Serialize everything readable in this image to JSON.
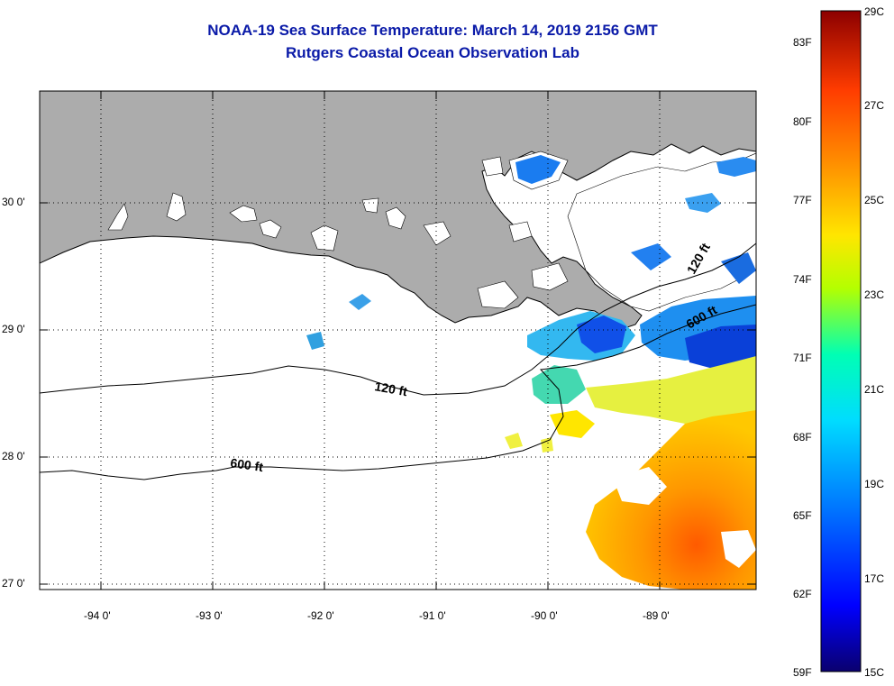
{
  "title": "NOAA-19 Sea Surface Temperature:  March 14, 2019 2156 GMT",
  "subtitle": "Rutgers Coastal Ocean Observation Lab",
  "map": {
    "lon_ticks": [
      "-94 0'",
      "-93 0'",
      "-92 0'",
      "-91 0'",
      "-90 0'",
      "-89 0'"
    ],
    "lat_ticks": [
      "30 0'",
      "29 0'",
      "28 0'",
      "27 0'"
    ],
    "isobath_labels": [
      {
        "id": "iso-120-west",
        "text": "120 ft"
      },
      {
        "id": "iso-600-west",
        "text": "600 ft"
      },
      {
        "id": "iso-120-east",
        "text": "120 ft"
      },
      {
        "id": "iso-600-east",
        "text": "600 ft"
      }
    ],
    "colors": {
      "land": "#acacac",
      "cloud": "#ffffff",
      "grid": "#000000"
    }
  },
  "colorbar": {
    "fahrenheit_labels": [
      "83F",
      "80F",
      "77F",
      "74F",
      "71F",
      "68F",
      "65F",
      "62F",
      "59F"
    ],
    "celsius_labels": [
      "29C",
      "27C",
      "25C",
      "23C",
      "21C",
      "19C",
      "17C",
      "15C"
    ],
    "min_c": 15,
    "max_c": 29,
    "stops": [
      "#0a006e",
      "#0000ff",
      "#0078ff",
      "#00dcff",
      "#00ffb4",
      "#b4ff00",
      "#ffe600",
      "#ff9600",
      "#ff3c00",
      "#8c0000"
    ]
  }
}
